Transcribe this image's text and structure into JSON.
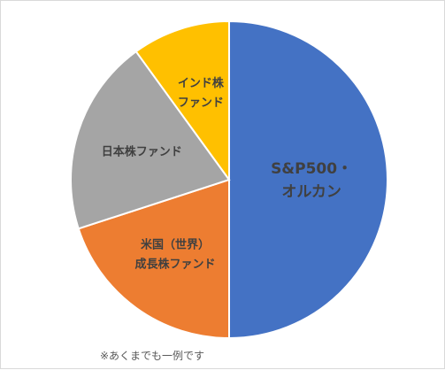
{
  "chart_data": {
    "type": "pie",
    "slices": [
      {
        "label_lines": [
          "S&P500・",
          "オルカン"
        ],
        "value": 50,
        "color": "#4472C4"
      },
      {
        "label_lines": [
          "米国（世界）",
          "成長株ファンド"
        ],
        "value": 20,
        "color": "#ED7D31"
      },
      {
        "label_lines": [
          "日本株ファンド"
        ],
        "value": 20,
        "color": "#A5A5A5"
      },
      {
        "label_lines": [
          "インド株",
          "ファンド"
        ],
        "value": 10,
        "color": "#FFC000"
      }
    ],
    "start_angle_deg": 0,
    "direction": "clockwise",
    "legend": "none"
  },
  "note": "※あくまでも一例です"
}
